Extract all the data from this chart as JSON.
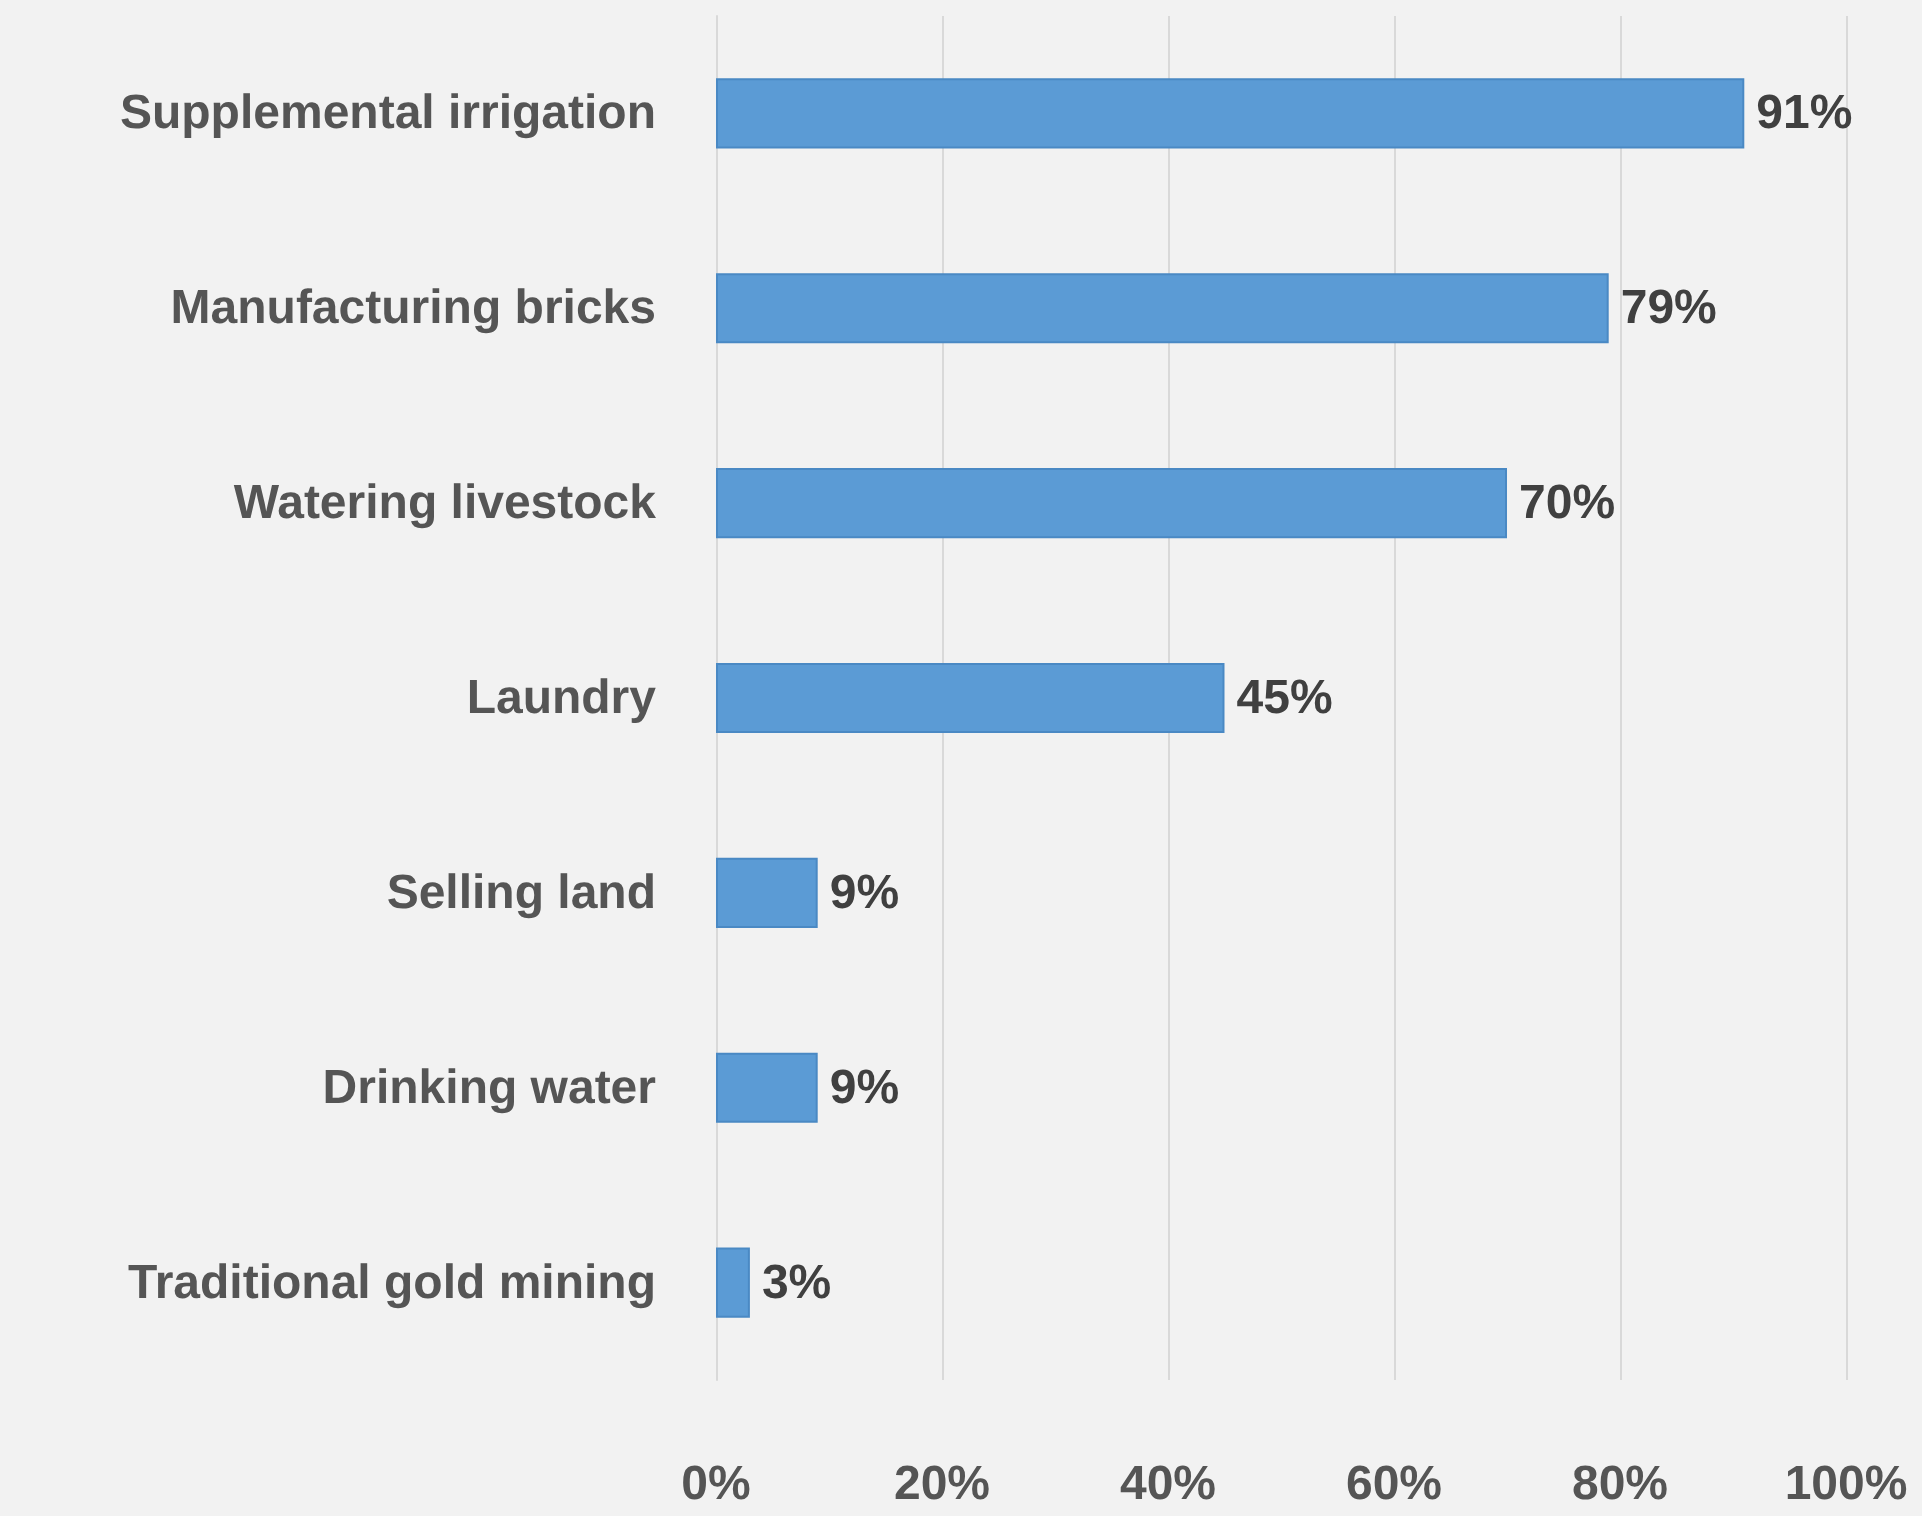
{
  "chart_data": {
    "type": "bar",
    "orientation": "horizontal",
    "categories": [
      "Supplemental irrigation",
      "Manufacturing bricks",
      "Watering livestock",
      "Laundry",
      "Selling land",
      "Drinking water",
      "Traditional gold mining"
    ],
    "values": [
      91,
      79,
      70,
      45,
      9,
      9,
      3
    ],
    "value_labels": [
      "91%",
      "79%",
      "70%",
      "45%",
      "9%",
      "9%",
      "3%"
    ],
    "color": "#5b9bd5",
    "xlim": [
      0,
      100
    ],
    "xticks": [
      {
        "value": 0,
        "label": "0%"
      },
      {
        "value": 20,
        "label": "20%"
      },
      {
        "value": 40,
        "label": "40%"
      },
      {
        "value": 60,
        "label": "60%"
      },
      {
        "value": 80,
        "label": "80%"
      },
      {
        "value": 100,
        "label": "100%"
      }
    ],
    "grid": "x"
  }
}
